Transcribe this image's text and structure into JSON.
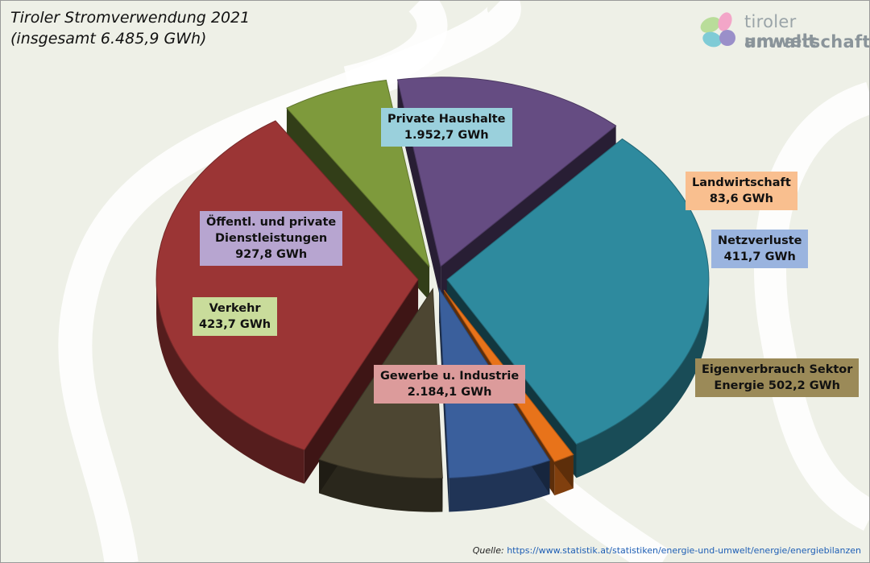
{
  "title": {
    "line1": "Tiroler Stromverwendung 2021",
    "line2": "(insgesamt 6.485,9 GWh)"
  },
  "logo": {
    "line1a": "tiroler ",
    "line1b": "umwelt",
    "line2": "anwaltschaft"
  },
  "source": {
    "label": "Quelle:",
    "url": "https://www.statistik.at/statistiken/energie-und-umwelt/energie/energiebilanzen"
  },
  "colors": {
    "private_haushalte": "#2e8a9e",
    "landwirtschaft": "#e8731a",
    "netzverluste": "#3a5f9c",
    "eigenverbrauch": "#4d4632",
    "gewerbe": "#9b3535",
    "verkehr": "#7e9a3c",
    "dienstleistungen": "#654c82"
  },
  "chart_data": {
    "type": "pie",
    "title": "Tiroler Stromverwendung 2021",
    "subtitle": "(insgesamt 6.485,9 GWh)",
    "unit": "GWh",
    "total": 6485.9,
    "slices": [
      {
        "key": "private_haushalte",
        "name": "Private Haushalte",
        "value": 1952.7,
        "value_label": "1.952,7 GWh"
      },
      {
        "key": "landwirtschaft",
        "name": "Landwirtschaft",
        "value": 83.6,
        "value_label": "83,6 GWh"
      },
      {
        "key": "netzverluste",
        "name": "Netzverluste",
        "value": 411.7,
        "value_label": "411,7 GWh"
      },
      {
        "key": "eigenverbrauch",
        "name": "Eigenverbrauch Sektor",
        "name2": "Energie 502,2 GWh",
        "value": 502.2,
        "value_label": "502,2 GWh"
      },
      {
        "key": "gewerbe",
        "name": "Gewerbe u. Industrie",
        "value": 2184.1,
        "value_label": "2.184,1 GWh"
      },
      {
        "key": "verkehr",
        "name": "Verkehr",
        "value": 423.7,
        "value_label": "423,7 GWh"
      },
      {
        "key": "dienstleistungen",
        "name": "Öffentl. und private",
        "name2": "Dienstleistungen",
        "value": 927.8,
        "value_label": "927,8 GWh"
      }
    ]
  }
}
